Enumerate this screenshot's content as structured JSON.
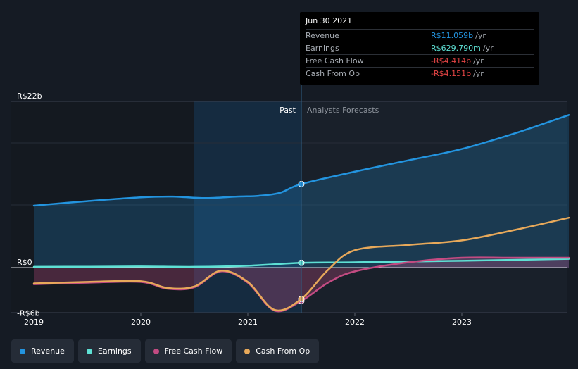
{
  "chart_data": {
    "type": "line",
    "title": "",
    "ylabel": "",
    "y_ticks": [
      "R$22b",
      "R$0",
      "-R$6b"
    ],
    "ylim": [
      -6,
      22
    ],
    "x_tick_labels": [
      "2019",
      "2020",
      "2021",
      "2022",
      "2023"
    ],
    "x_ticks": [
      2019.0,
      2020.0,
      2021.0,
      2022.0,
      2023.0
    ],
    "xlim": [
      2018.8,
      2024.0
    ],
    "past_label": "Past",
    "forecast_label": "Analysts Forecasts",
    "past_end": 2021.5,
    "band_start": 2020.5,
    "series": [
      {
        "name": "Revenue",
        "color": "#2394df",
        "fill": true,
        "x": [
          2019.0,
          2019.5,
          2020.0,
          2020.3,
          2020.6,
          2020.9,
          2021.1,
          2021.3,
          2021.5,
          2022.0,
          2022.5,
          2023.0,
          2023.5,
          2024.0
        ],
        "y": [
          8.2,
          8.8,
          9.3,
          9.4,
          9.2,
          9.4,
          9.5,
          9.9,
          11.06,
          12.7,
          14.2,
          15.7,
          17.8,
          20.2
        ]
      },
      {
        "name": "Earnings",
        "color": "#5ee0d4",
        "fill": false,
        "x": [
          2019.0,
          2019.5,
          2020.0,
          2020.5,
          2021.0,
          2021.5,
          2022.0,
          2023.0,
          2024.0
        ],
        "y": [
          0.1,
          0.12,
          0.15,
          0.1,
          0.25,
          0.63,
          0.7,
          0.9,
          1.15
        ]
      },
      {
        "name": "Free Cash Flow",
        "color": "#c34b82",
        "fill": true,
        "x": [
          2019.0,
          2019.5,
          2020.0,
          2020.25,
          2020.5,
          2020.75,
          2021.0,
          2021.25,
          2021.5,
          2021.75,
          2022.0,
          2022.5,
          2023.0,
          2023.5,
          2024.0
        ],
        "y": [
          -2.2,
          -2.0,
          -1.9,
          -2.8,
          -2.6,
          -0.5,
          -2.0,
          -5.7,
          -4.41,
          -2.0,
          -0.5,
          0.7,
          1.3,
          1.3,
          1.3
        ]
      },
      {
        "name": "Cash From Op",
        "color": "#e8a95a",
        "fill": false,
        "x": [
          2019.0,
          2019.5,
          2020.0,
          2020.25,
          2020.5,
          2020.75,
          2021.0,
          2021.25,
          2021.5,
          2021.75,
          2022.0,
          2022.5,
          2023.0,
          2023.5,
          2024.0
        ],
        "y": [
          -2.1,
          -1.9,
          -1.8,
          -2.7,
          -2.5,
          -0.4,
          -1.9,
          -5.6,
          -4.15,
          -0.3,
          2.3,
          3.0,
          3.6,
          5.0,
          6.6
        ]
      }
    ]
  },
  "tooltip": {
    "date": "Jun 30 2021",
    "rows": [
      {
        "label": "Revenue",
        "value": "R$11.059b",
        "unit": "/yr",
        "color": "#2394df"
      },
      {
        "label": "Earnings",
        "value": "R$629.790m",
        "unit": "/yr",
        "color": "#5ee0d4"
      },
      {
        "label": "Free Cash Flow",
        "value": "-R$4.414b",
        "unit": "/yr",
        "color": "#e64545"
      },
      {
        "label": "Cash From Op",
        "value": "-R$4.151b",
        "unit": "/yr",
        "color": "#e64545"
      }
    ]
  },
  "legend": [
    {
      "label": "Revenue",
      "color": "#2394df"
    },
    {
      "label": "Earnings",
      "color": "#5ee0d4"
    },
    {
      "label": "Free Cash Flow",
      "color": "#c34b82"
    },
    {
      "label": "Cash From Op",
      "color": "#e8a95a"
    }
  ]
}
